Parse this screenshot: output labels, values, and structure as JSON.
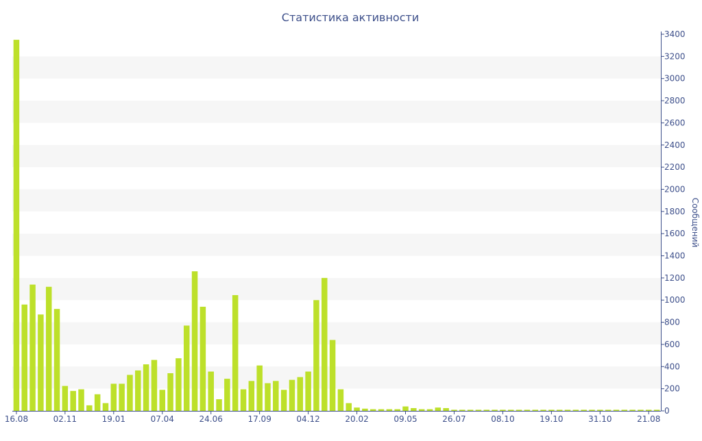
{
  "chart_data": {
    "type": "bar",
    "title": "Статистика активности",
    "ylabel": "Сообщений",
    "xlabel": "",
    "ylim": [
      0,
      3400
    ],
    "y_ticks": [
      0,
      200,
      400,
      600,
      800,
      1000,
      1200,
      1400,
      1600,
      1800,
      2000,
      2200,
      2400,
      2600,
      2800,
      3000,
      3200,
      3400
    ],
    "y_axis_side": "right",
    "grid": "alternating horizontal bands",
    "legend": "none",
    "x_tick_labels": [
      {
        "label": "16.08",
        "index": 0
      },
      {
        "label": "02.11",
        "index": 6
      },
      {
        "label": "19.01",
        "index": 12
      },
      {
        "label": "07.04",
        "index": 18
      },
      {
        "label": "24.06",
        "index": 24
      },
      {
        "label": "17.09",
        "index": 30
      },
      {
        "label": "04.12",
        "index": 36
      },
      {
        "label": "20.02",
        "index": 42
      },
      {
        "label": "09.05",
        "index": 48
      },
      {
        "label": "26.07",
        "index": 54
      },
      {
        "label": "08.10",
        "index": 60
      },
      {
        "label": "19.10",
        "index": 66
      },
      {
        "label": "31.10",
        "index": 72
      },
      {
        "label": "21.08",
        "index": 78
      }
    ],
    "values": [
      3350,
      960,
      1140,
      870,
      1120,
      920,
      225,
      180,
      195,
      50,
      150,
      70,
      245,
      245,
      325,
      365,
      420,
      460,
      190,
      340,
      475,
      770,
      1260,
      940,
      355,
      105,
      290,
      1045,
      195,
      270,
      410,
      250,
      270,
      190,
      280,
      305,
      355,
      1000,
      1200,
      640,
      195,
      70,
      30,
      20,
      15,
      15,
      15,
      15,
      40,
      25,
      15,
      15,
      30,
      25,
      10,
      10,
      10,
      10,
      10,
      10,
      10,
      10,
      10,
      10,
      10,
      10,
      10,
      10,
      10,
      10,
      10,
      10,
      10,
      10,
      10,
      10,
      10,
      10,
      10,
      10
    ],
    "colors": {
      "bar": "#bde02a",
      "text": "#3d4f8a",
      "axis": "#3d4f8a",
      "band": "#f6f6f6"
    }
  }
}
